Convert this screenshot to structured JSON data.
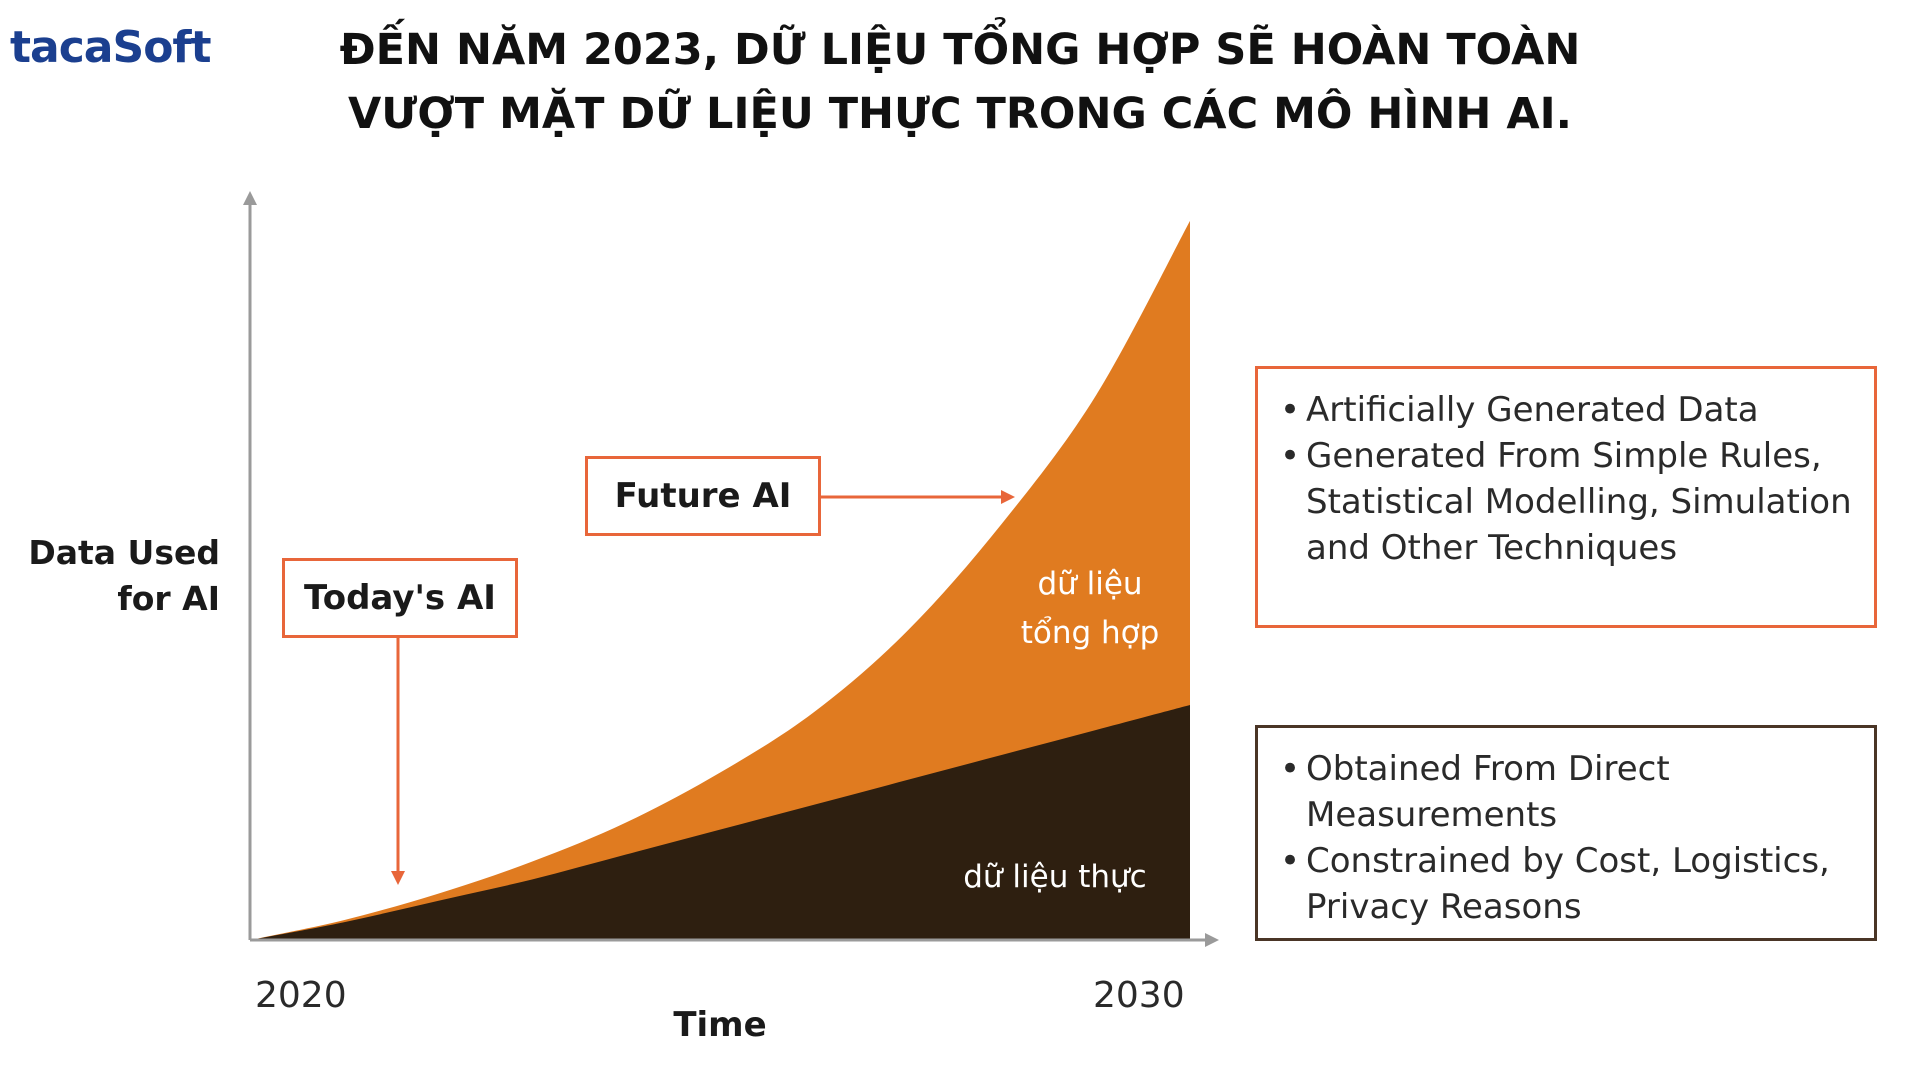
{
  "logo": {
    "text": "tacaSoft"
  },
  "headline": {
    "line1": "ĐẾN NĂM 2023, DỮ LIỆU TỔNG HỢP SẼ HOÀN TOÀN",
    "line2": "VƯỢT MẶT DỮ LIỆU THỰC TRONG CÁC MÔ HÌNH AI."
  },
  "colors": {
    "synthetic": "#e07b20",
    "real": "#2e1f10",
    "accent": "#e8663a",
    "axis": "#9a9a9a"
  },
  "chart_data": {
    "type": "area",
    "stacked": true,
    "x": [
      2020,
      2021,
      2022,
      2023,
      2024,
      2025,
      2026,
      2027,
      2028,
      2029,
      2030
    ],
    "xlim": [
      2020,
      2030
    ],
    "ylim": [
      0,
      100
    ],
    "xlabel": "Time",
    "ylabel": "Data Used for AI",
    "x_tick_labels": [
      "2020",
      "2030"
    ],
    "series": [
      {
        "name": "dữ liệu thực",
        "values": [
          0,
          2.5,
          5.5,
          8.5,
          12,
          15.5,
          19,
          22.5,
          26,
          29.5,
          33
        ]
      },
      {
        "name": "dữ liệu tổng hợp",
        "values": [
          0,
          0.3,
          1,
          2.5,
          4.5,
          8,
          13,
          21,
          32.5,
          47,
          68
        ]
      }
    ],
    "annotations": {
      "today": "Today's AI",
      "future": "Future AI"
    },
    "area_labels": {
      "synthetic_line1": "dữ liệu",
      "synthetic_line2": "tổng hợp",
      "real": "dữ liệu thực"
    },
    "legend_boxes": {
      "synthetic": [
        "Artificially Generated Data",
        "Generated From Simple Rules, Statistical Modelling, Simulation and Other Techniques"
      ],
      "real": [
        "Obtained From Direct Measurements",
        "Constrained by Cost, Logistics, Privacy Reasons"
      ]
    }
  }
}
